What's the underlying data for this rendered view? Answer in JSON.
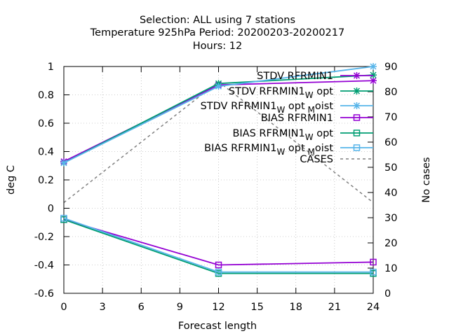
{
  "chart_data": {
    "type": "line",
    "title_lines": [
      "Selection: ALL using     7 stations",
      "Temperature 925hPa   Period: 20200203-20200217",
      "Hours:  12"
    ],
    "xlabel": "Forecast length",
    "ylabel": "deg C",
    "y2label": "No cases",
    "xlim": [
      0,
      24
    ],
    "ylim": [
      -0.6,
      1
    ],
    "y2lim": [
      0,
      90
    ],
    "xticks": [
      0,
      3,
      6,
      9,
      12,
      15,
      18,
      21,
      24
    ],
    "yticks": [
      "-0.6",
      "-0.4",
      "-0.2",
      "0",
      "0.2",
      "0.4",
      "0.6",
      "0.8",
      "1"
    ],
    "y2ticks": [
      0,
      10,
      20,
      30,
      40,
      50,
      60,
      70,
      80,
      90
    ],
    "grid": true,
    "legend_position": "top-right",
    "x": [
      0,
      12,
      24
    ],
    "series": [
      {
        "label": "STDV RFRMIN1",
        "sub1": "",
        "mid": "",
        "sub2": "",
        "end": "",
        "axis": "y1",
        "color": "#9400d3",
        "marker": "x",
        "dash": false,
        "values": [
          0.33,
          0.87,
          0.9
        ]
      },
      {
        "label": "STDV RFRMIN1",
        "sub1": "W",
        "mid": "opt",
        "sub2": "",
        "end": "",
        "axis": "y1",
        "color": "#009e73",
        "marker": "x",
        "dash": false,
        "values": [
          0.32,
          0.88,
          0.94
        ]
      },
      {
        "label": "STDV RFRMIN1",
        "sub1": "W",
        "mid": "opt",
        "sub2": "M",
        "end": "oist",
        "axis": "y1",
        "color": "#56b4e9",
        "marker": "x",
        "dash": false,
        "values": [
          0.32,
          0.86,
          1.0
        ]
      },
      {
        "label": "BIAS RFRMIN1",
        "sub1": "",
        "mid": "",
        "sub2": "",
        "end": "",
        "axis": "y1",
        "color": "#9400d3",
        "marker": "square",
        "dash": false,
        "values": [
          -0.08,
          -0.4,
          -0.38
        ]
      },
      {
        "label": "BIAS RFRMIN1",
        "sub1": "W",
        "mid": "opt",
        "sub2": "",
        "end": "",
        "axis": "y1",
        "color": "#009e73",
        "marker": "square",
        "dash": false,
        "values": [
          -0.08,
          -0.46,
          -0.46
        ]
      },
      {
        "label": "BIAS RFRMIN1",
        "sub1": "W",
        "mid": "opt",
        "sub2": "M",
        "end": "oist",
        "axis": "y1",
        "color": "#56b4e9",
        "marker": "square",
        "dash": false,
        "values": [
          -0.07,
          -0.45,
          -0.45
        ]
      },
      {
        "label": "CASES",
        "sub1": "",
        "mid": "",
        "sub2": "",
        "end": "",
        "axis": "y2",
        "color": "#808080",
        "marker": "none",
        "dash": true,
        "values": [
          36,
          84,
          36
        ]
      }
    ]
  }
}
